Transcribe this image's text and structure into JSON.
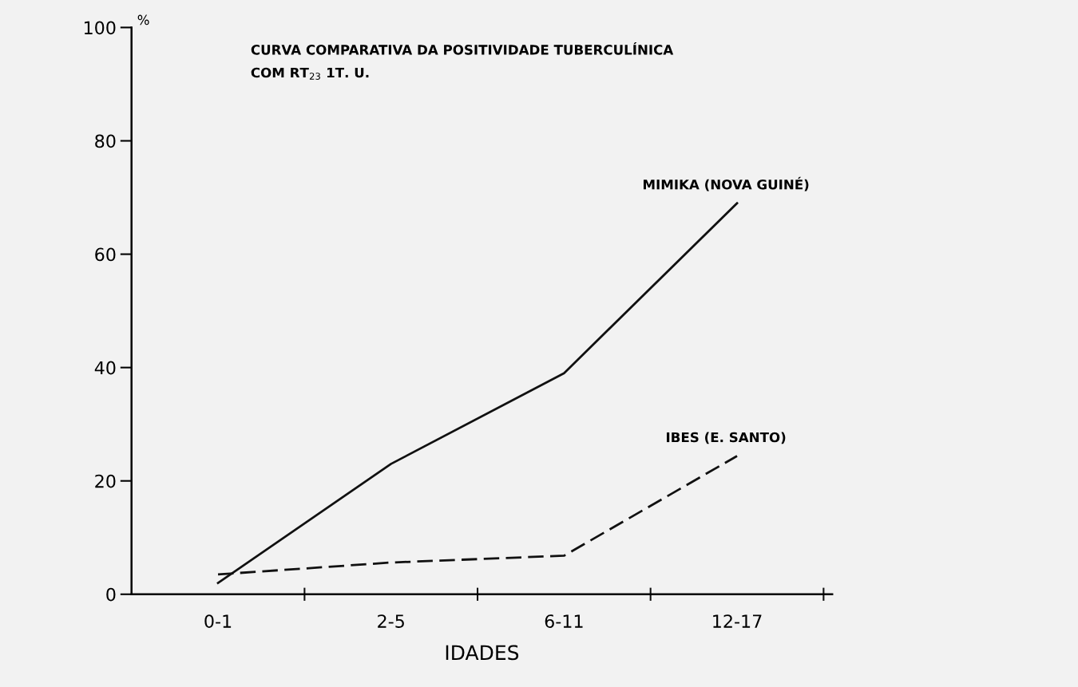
{
  "chart_data": {
    "type": "line",
    "title": "CURVA COMPARATIVA DA POSITIVIDADE TUBERCULÍNICA\nCOM RT$_{23}$ 1T. U.",
    "xlabel": "IDADES",
    "ylabel": "%",
    "categories": [
      "0-1",
      "2-5",
      "6-11",
      "12-17"
    ],
    "series": [
      {
        "name": "MIMIKA (NOVA GUINÉ)",
        "color": "#111111",
        "line_style": "solid",
        "values": [
          2,
          23,
          39,
          69
        ]
      },
      {
        "name": "IBES (E. SANTO)",
        "color": "#111111",
        "line_style": "dashed",
        "values": [
          3.5,
          5.6,
          6.8,
          24.4
        ]
      }
    ],
    "ylim": [
      0,
      100
    ],
    "yticks": [
      0,
      20,
      40,
      60,
      80,
      100
    ],
    "grid": false,
    "legend": false,
    "marker": "none"
  }
}
